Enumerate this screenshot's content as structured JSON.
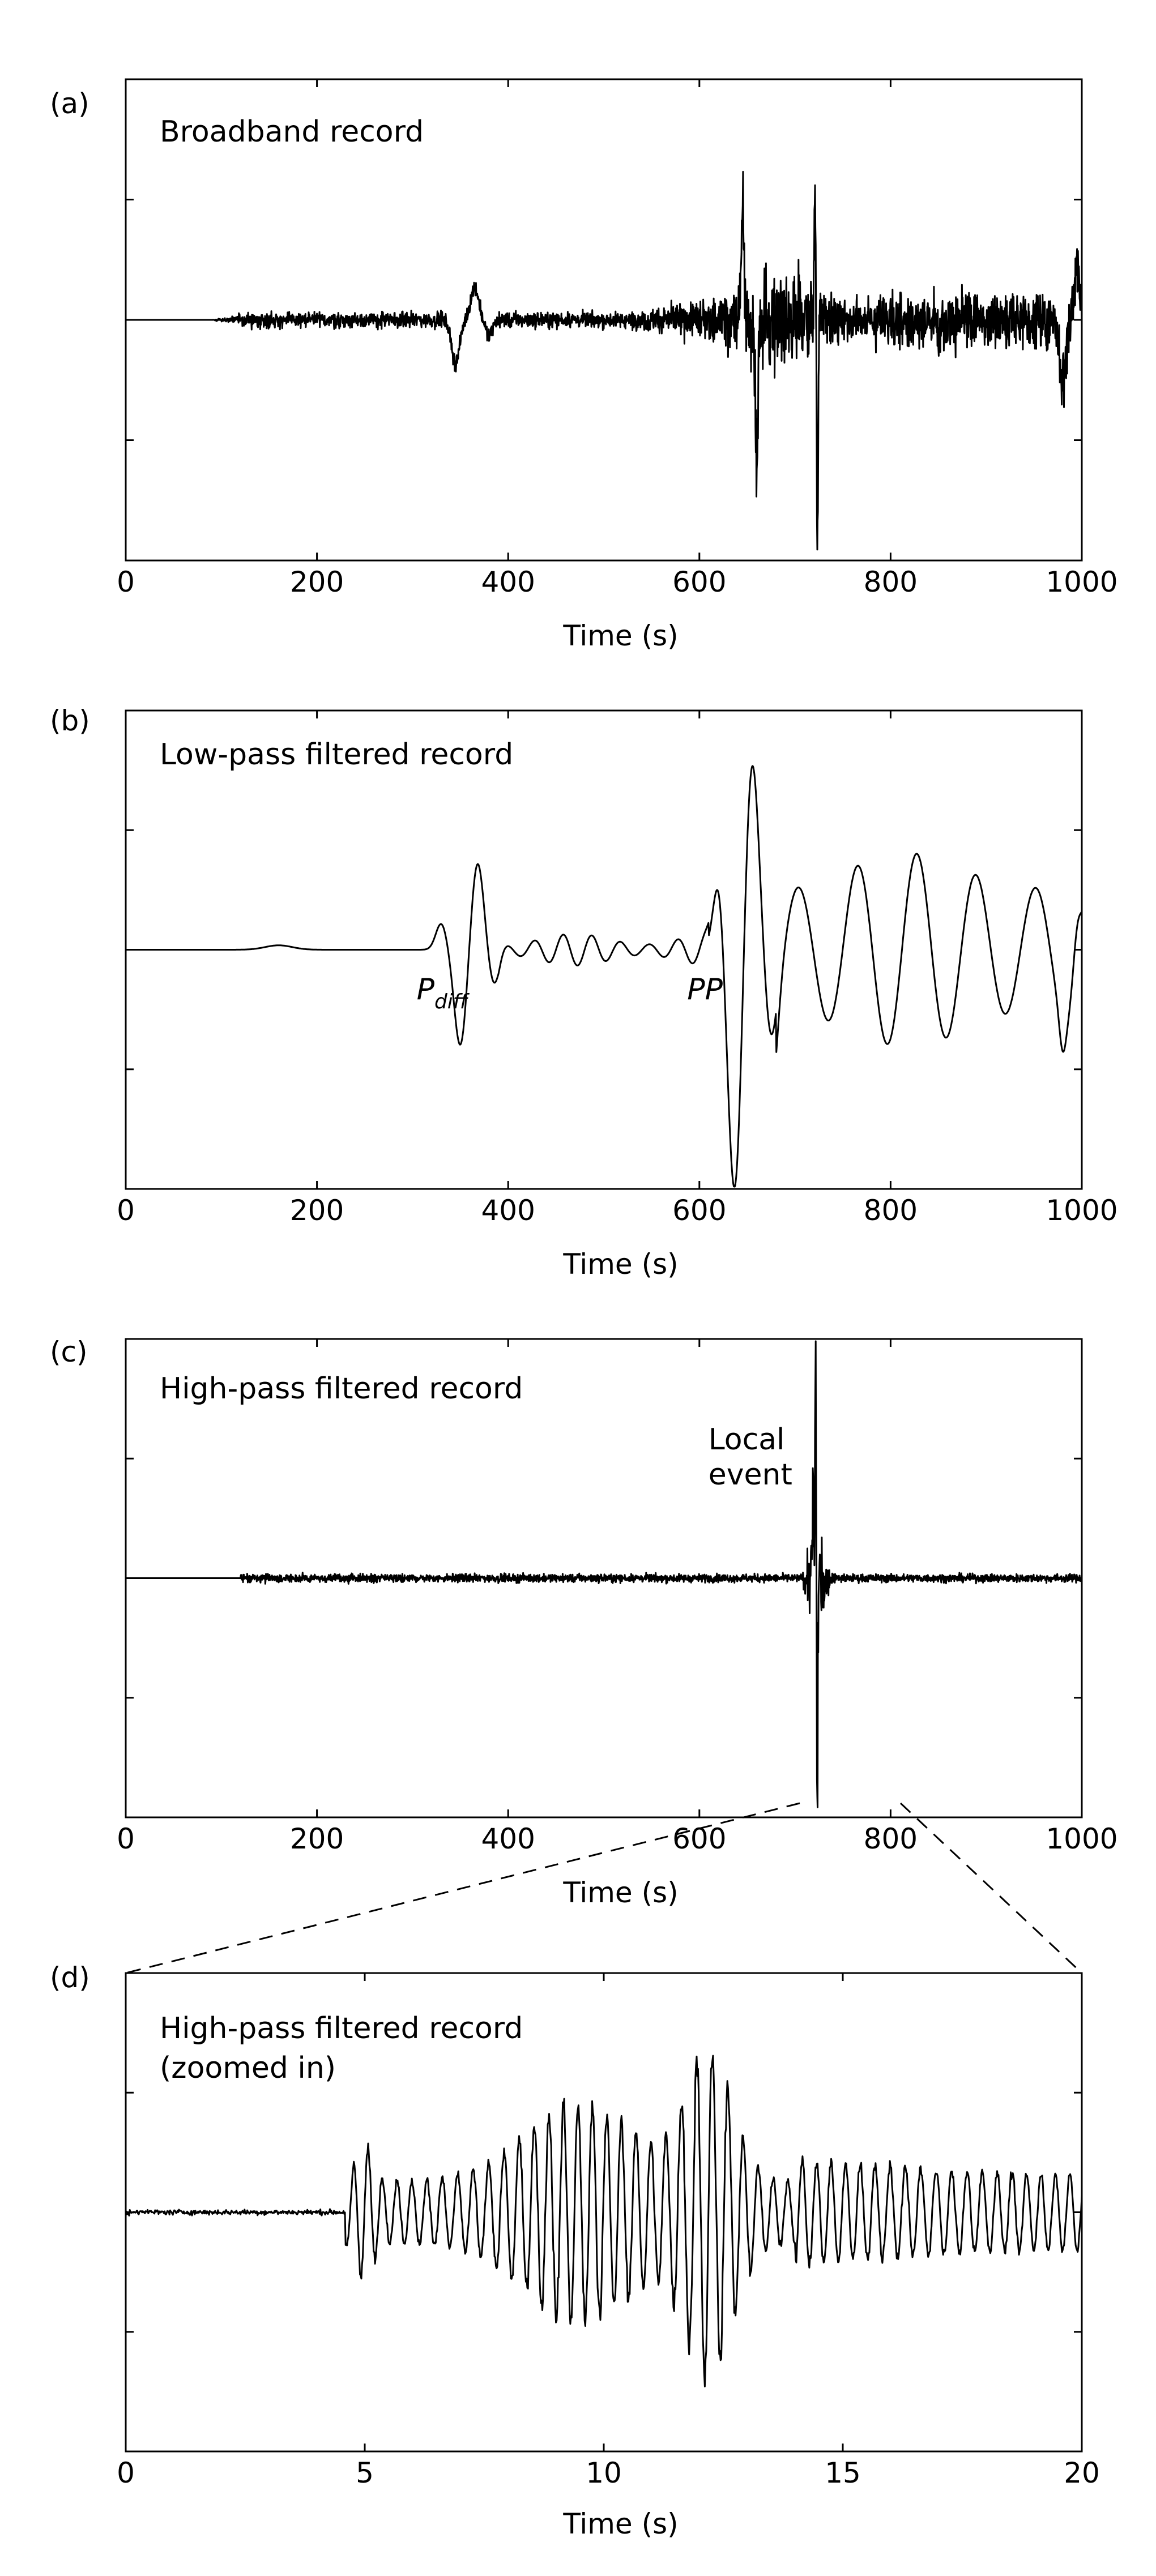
{
  "chart_data": [
    {
      "panel": "(a)",
      "type": "line",
      "title": "Broadband record",
      "xlabel": "Time (s)",
      "ylabel": "",
      "xlim": [
        0,
        1000
      ],
      "xticks": [
        "0",
        "200",
        "400",
        "600",
        "800",
        "1000"
      ],
      "annotations": [],
      "features": [
        {
          "t": 90,
          "desc": "onset of noise"
        },
        {
          "t": 345,
          "value": -0.35
        },
        {
          "t": 365,
          "value": 0.25
        },
        {
          "t": 645,
          "value": 1.1
        },
        {
          "t": 660,
          "value": -1.3
        },
        {
          "t": 722,
          "value": 1.2
        },
        {
          "t": 723,
          "value": -2.0
        }
      ]
    },
    {
      "panel": "(b)",
      "type": "line",
      "title": "Low-pass filtered record",
      "xlabel": "Time (s)",
      "ylabel": "",
      "xlim": [
        0,
        1000
      ],
      "xticks": [
        "0",
        "200",
        "400",
        "600",
        "800",
        "1000"
      ],
      "annotations": [
        {
          "text": "P",
          "sub": "diff",
          "t": 325
        },
        {
          "text": "PP",
          "t": 605
        }
      ],
      "features": [
        {
          "t": 160,
          "value": 0.05
        },
        {
          "t": 330,
          "value": 0.3
        },
        {
          "t": 350,
          "value": -1.1
        },
        {
          "t": 368,
          "value": 1.0
        },
        {
          "t": 620,
          "value": 0.8
        },
        {
          "t": 637,
          "value": -2.8
        },
        {
          "t": 655,
          "value": 2.2
        },
        {
          "t": 705,
          "value": 1.0
        },
        {
          "t": 765,
          "value": 0.9
        },
        {
          "t": 828,
          "value": 0.9
        },
        {
          "t": 995,
          "value": 1.2
        }
      ]
    },
    {
      "panel": "(c)",
      "type": "line",
      "title": "High-pass filtered record",
      "xlabel": "Time (s)",
      "ylabel": "",
      "xlim": [
        0,
        1000
      ],
      "xticks": [
        "0",
        "200",
        "400",
        "600",
        "800",
        "1000"
      ],
      "annotations": [
        {
          "text_lines": [
            "Local",
            "event"
          ],
          "t": 722
        }
      ],
      "features": [
        {
          "t": 120,
          "desc": "onset of noise"
        },
        {
          "t": 722,
          "value": 2.3
        },
        {
          "t": 723,
          "value": -2.2
        }
      ]
    },
    {
      "panel": "(d)",
      "type": "line",
      "title": "High-pass filtered record",
      "subtitle": "(zoomed in)",
      "xlabel": "Time (s)",
      "ylabel": "",
      "xlim": [
        0,
        20
      ],
      "xticks": [
        "0",
        "5",
        "10",
        "15",
        "20"
      ],
      "annotations": [],
      "features": [
        {
          "t": 4.7,
          "value": 0.2
        },
        {
          "t": 5.0,
          "value": 1.1
        },
        {
          "t": 5.0,
          "value": -1.0
        },
        {
          "t": 9.5,
          "value": 1.6
        },
        {
          "t": 11.8,
          "value": 2.0
        },
        {
          "t": 12.2,
          "value": -2.6
        },
        {
          "t": 12.4,
          "value": 2.4
        }
      ]
    }
  ]
}
